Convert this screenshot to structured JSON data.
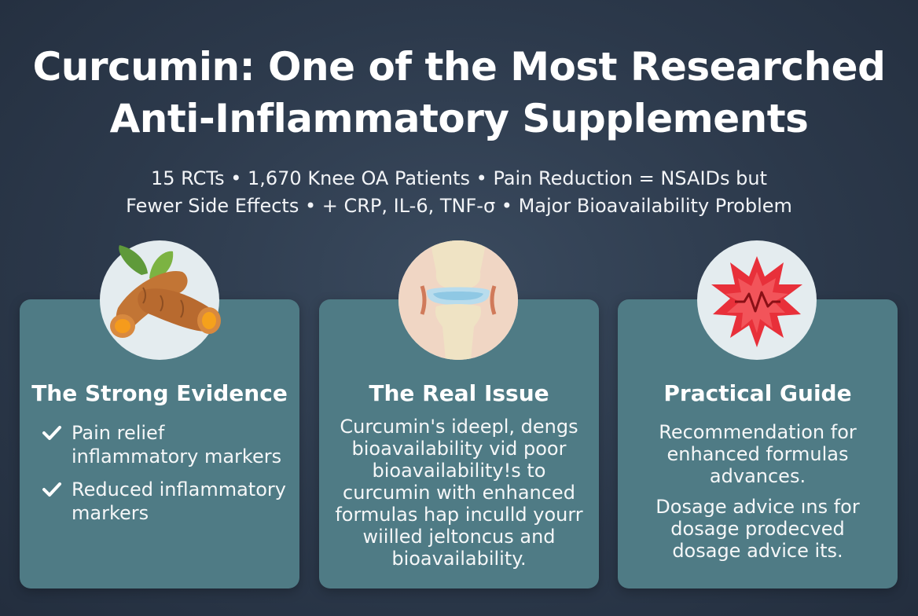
{
  "header": {
    "title_line1": "Curcumin: One of the Most Researched",
    "title_line2": "Anti-Inflammatory Supplements",
    "subtitle_line1": "15 RCTs • 1,670 Knee OA Patients • Pain Reduction = NSAIDs but",
    "subtitle_line2": "Fewer Side Effects • + CRP, IL-6, TNF-σ • Major Bioavailability Problem"
  },
  "cards": [
    {
      "icon": "turmeric-root-icon",
      "title": "The Strong Evidence",
      "items": [
        "Pain relief inflammatory markers",
        "Reduced inflammatory markers"
      ]
    },
    {
      "icon": "knee-joint-icon",
      "title": "The Real Issue",
      "body": "Curcumin's ideepl, dengs\nbioavailability vid poor\nbioavailability!s to\ncurcumin with enhanced\nformulas hap inculld yourr\nwiilled jeltoncus and\nbioavailability."
    },
    {
      "icon": "inflammation-burst-icon",
      "title": "Practical Guide",
      "body1": "Recommendation for\nenhanced formulas\nadvances.",
      "body2": "Dosage advice ıns for\ndosage prodecved\ndosage advice its."
    }
  ],
  "colors": {
    "background": "#2c394b",
    "card": "#4f7b85",
    "icon_circle": "#e4ecef",
    "turmeric": "#c9773a",
    "burst": "#e8303a"
  }
}
